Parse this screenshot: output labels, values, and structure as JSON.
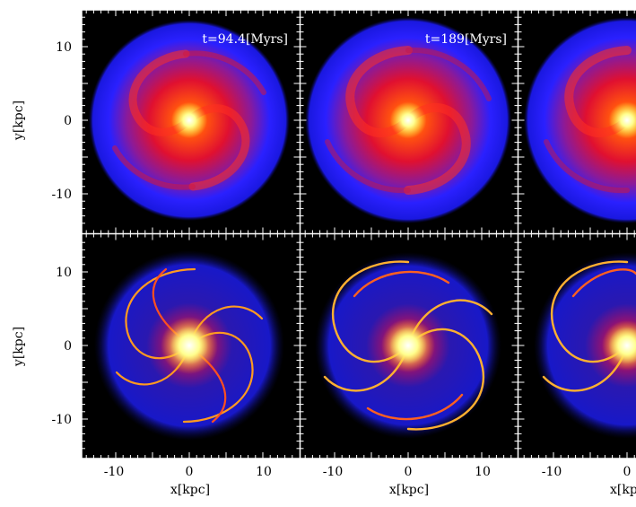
{
  "figure": {
    "y_label": "y[kpc]",
    "x_label": "x[kpc]",
    "y_ticks": [
      "10",
      "0",
      "-10"
    ],
    "x_ticks": [
      "-10",
      "0",
      "10"
    ],
    "colors": {
      "background": "#000000",
      "outer_disk": "#1a1aff",
      "mid_disk": "#d0103a",
      "core": "#ffffa0",
      "frame": "#ffffff"
    }
  },
  "panels": [
    {
      "id": "top-1",
      "row": "stars",
      "time_label": "t=94.4[Myrs]"
    },
    {
      "id": "top-2",
      "row": "stars",
      "time_label": "t=189[Myrs]"
    },
    {
      "id": "top-3",
      "row": "stars",
      "time_label": ""
    },
    {
      "id": "bottom-1",
      "row": "gas",
      "time_label": ""
    },
    {
      "id": "bottom-2",
      "row": "gas",
      "time_label": ""
    },
    {
      "id": "bottom-3",
      "row": "gas",
      "time_label": ""
    }
  ]
}
